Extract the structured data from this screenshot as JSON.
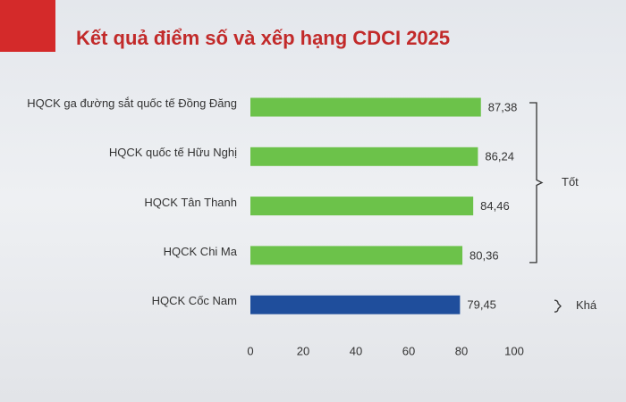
{
  "chart_data": {
    "type": "hbar",
    "title": "Kết quả điểm số và xếp hạng CDCI 2025",
    "categories": [
      "HQCK ga đường sắt quốc tế Đồng Đăng",
      "HQCK quốc tế Hữu Nghị",
      "HQCK Tân Thanh",
      "HQCK Chi Ma",
      "HQCK Cốc Nam"
    ],
    "values": [
      87.38,
      86.24,
      84.46,
      80.36,
      79.45
    ],
    "value_labels": [
      "87,38",
      "86,24",
      "84,46",
      "80,36",
      "79,45"
    ],
    "colors": [
      "#6cc24a",
      "#6cc24a",
      "#6cc24a",
      "#6cc24a",
      "#1f4e9c"
    ],
    "xlim": [
      0,
      100
    ],
    "xticks": [
      0,
      20,
      40,
      60,
      80,
      100
    ],
    "annotations": [
      {
        "text": "Tốt",
        "span": [
          0,
          3
        ]
      },
      {
        "text": "Khá",
        "span": [
          4,
          4
        ]
      }
    ]
  }
}
